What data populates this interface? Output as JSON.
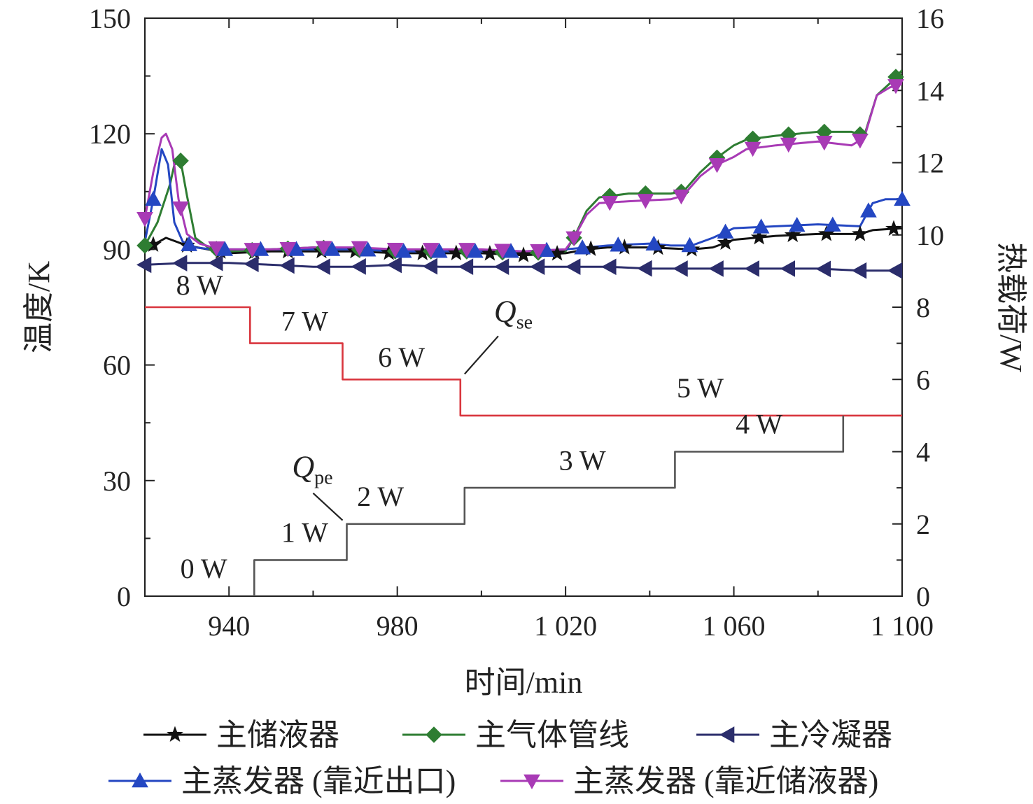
{
  "chart_data": {
    "type": "line",
    "xlabel": "时间/min",
    "ylabel": "温度/K",
    "y2label": "热载荷/W",
    "xlim": [
      920,
      1100
    ],
    "ylim": [
      0,
      150
    ],
    "y2lim": [
      0,
      16
    ],
    "x_ticks": [
      940,
      980,
      1020,
      1060,
      1100
    ],
    "x_tick_labels": [
      "940",
      "980",
      "1 020",
      "1 060",
      "1 100"
    ],
    "y_ticks": [
      0,
      30,
      60,
      90,
      120,
      150
    ],
    "y_tick_labels": [
      "0",
      "30",
      "60",
      "90",
      "120",
      "150"
    ],
    "y2_ticks": [
      0,
      2,
      4,
      6,
      8,
      10,
      12,
      14,
      16
    ],
    "y2_tick_labels": [
      "0",
      "2",
      "4",
      "6",
      "8",
      "10",
      "12",
      "14",
      "16"
    ],
    "legend_position": "bottom",
    "series": [
      {
        "name": "主储液器",
        "axis": "left",
        "color": "#111111",
        "marker": "star",
        "x": [
          920,
          925,
          930,
          935,
          940,
          950,
          960,
          970,
          980,
          990,
          1000,
          1010,
          1020,
          1025,
          1030,
          1040,
          1050,
          1055,
          1060,
          1070,
          1080,
          1090,
          1093,
          1100
        ],
        "y": [
          90,
          93,
          91,
          90,
          89,
          89.5,
          89.5,
          89.5,
          89,
          89,
          89,
          88.5,
          89,
          90,
          90.5,
          90.5,
          90,
          90.5,
          92.5,
          93.5,
          94,
          94,
          95,
          95.5
        ],
        "marker_x": [
          922,
          930,
          938,
          946,
          954,
          962,
          970,
          978,
          986,
          994,
          1002,
          1010,
          1018,
          1026,
          1034,
          1042,
          1050,
          1058,
          1066,
          1074,
          1082,
          1090,
          1098
        ]
      },
      {
        "name": "主气体管线",
        "axis": "left",
        "color": "#2e7d32",
        "marker": "diamond",
        "x": [
          920,
          923,
          926,
          927,
          928.5,
          930,
          932,
          935,
          940,
          950,
          960,
          970,
          980,
          990,
          1000,
          1010,
          1020,
          1022,
          1025,
          1028,
          1035,
          1045,
          1048,
          1052,
          1055,
          1060,
          1063,
          1070,
          1080,
          1088,
          1091,
          1094,
          1097,
          1100
        ],
        "y": [
          91,
          97,
          107,
          112,
          113,
          104,
          93,
          90.5,
          89.5,
          90,
          90.5,
          90,
          89.5,
          89.5,
          89.5,
          89,
          89.5,
          93,
          100,
          103.5,
          104.5,
          104.5,
          105,
          110,
          113,
          117,
          118.5,
          119.5,
          120.5,
          120.5,
          119.5,
          130,
          133,
          136.5
        ],
        "marker_x": [
          920,
          928.5,
          937,
          945.5,
          954,
          962.5,
          971,
          979.5,
          988,
          996.5,
          1005,
          1013.5,
          1022,
          1030.5,
          1039,
          1047.5,
          1056,
          1064.5,
          1073,
          1081.5,
          1090,
          1098.5
        ]
      },
      {
        "name": "主冷凝器",
        "axis": "left",
        "color": "#2b2d6b",
        "marker": "triangle-left",
        "x": [
          920,
          930,
          940,
          950,
          960,
          970,
          980,
          990,
          1000,
          1010,
          1020,
          1030,
          1040,
          1050,
          1060,
          1070,
          1080,
          1090,
          1100
        ],
        "y": [
          86,
          86.5,
          86.5,
          86,
          85.5,
          85.5,
          86,
          85.5,
          85.5,
          85.5,
          85.5,
          85.5,
          85,
          85,
          85,
          85,
          85,
          84.5,
          84.5
        ],
        "marker_x": [
          920,
          928.5,
          937,
          945.5,
          954,
          962.5,
          971,
          979.5,
          988,
          996.5,
          1005,
          1013.5,
          1022,
          1030.5,
          1039,
          1047.5,
          1056,
          1064.5,
          1073,
          1081.5,
          1090,
          1098.5
        ]
      },
      {
        "name": "主蒸发器 (靠近出口)",
        "axis": "left",
        "color": "#2447c2",
        "marker": "triangle-up",
        "x": [
          920,
          922,
          924,
          925.5,
          927,
          929,
          932,
          936,
          940,
          950,
          960,
          970,
          980,
          990,
          1000,
          1010,
          1020,
          1030,
          1040,
          1045,
          1050,
          1055,
          1060,
          1070,
          1080,
          1090,
          1093,
          1096,
          1100
        ],
        "y": [
          92,
          103,
          116,
          112,
          97,
          92,
          90.5,
          90,
          90,
          90,
          90,
          90,
          89.5,
          89.5,
          89.5,
          89.5,
          90,
          91,
          91.5,
          91,
          91,
          93,
          95.5,
          96,
          96.5,
          96,
          102,
          103,
          103
        ],
        "marker_x": [
          922,
          930.5,
          939,
          947.5,
          956,
          964.5,
          973,
          981.5,
          990,
          998.5,
          1007,
          1015.5,
          1024,
          1032.5,
          1041,
          1049.5,
          1058,
          1066.5,
          1075,
          1083.5,
          1092,
          1100
        ]
      },
      {
        "name": "主蒸发器 (靠近储液器)",
        "axis": "left",
        "color": "#a83ab5",
        "marker": "triangle-down",
        "x": [
          920,
          922,
          924,
          925,
          926.5,
          928,
          930,
          933,
          936,
          940,
          950,
          960,
          970,
          980,
          990,
          1000,
          1010,
          1020,
          1022,
          1025,
          1028,
          1035,
          1045,
          1048,
          1052,
          1055,
          1060,
          1063,
          1070,
          1080,
          1088,
          1091,
          1094,
          1097,
          1100
        ],
        "y": [
          98,
          110,
          119,
          120,
          116,
          103,
          94,
          91.5,
          90.5,
          90,
          90,
          90.5,
          90.5,
          90,
          90,
          90,
          89.5,
          90,
          93,
          99,
          102,
          102.5,
          103,
          104,
          109,
          111.5,
          114,
          116,
          117,
          118,
          117,
          119,
          130,
          132,
          133
        ],
        "marker_x": [
          920,
          928.5,
          937,
          945.5,
          954,
          962.5,
          971,
          979.5,
          988,
          996.5,
          1005,
          1013.5,
          1022,
          1030.5,
          1039,
          1047.5,
          1056,
          1064.5,
          1073,
          1081.5,
          1090,
          1098.5
        ]
      },
      {
        "name": "",
        "axis": "right",
        "color": "#d9363e",
        "marker": "none",
        "step": true,
        "x": [
          920,
          945,
          945,
          967,
          967,
          995,
          995,
          1100
        ],
        "y": [
          8,
          8,
          7,
          7,
          6,
          6,
          5,
          5
        ]
      },
      {
        "name": "",
        "axis": "right",
        "color": "#555555",
        "marker": "none",
        "step": true,
        "x": [
          946,
          946,
          968,
          968,
          996,
          996,
          1046,
          1046,
          1086,
          1086
        ],
        "y": [
          0,
          1,
          1,
          2,
          2,
          3,
          3,
          4,
          4,
          5
        ]
      }
    ],
    "annotations": [
      {
        "text": "8 W",
        "x": 933,
        "y2": 8.35
      },
      {
        "text": "7 W",
        "x": 958,
        "y2": 7.35
      },
      {
        "text": "6 W",
        "x": 981,
        "y2": 6.35
      },
      {
        "text": "5 W",
        "x": 1052,
        "y2": 5.5
      },
      {
        "text": "4 W",
        "x": 1066,
        "y2": 4.5
      },
      {
        "text": "3 W",
        "x": 1024,
        "y2": 3.5
      },
      {
        "text": "2 W",
        "x": 976,
        "y2": 2.5
      },
      {
        "text": "1 W",
        "x": 958,
        "y2": 1.5
      },
      {
        "text": "0 W",
        "x": 934,
        "y2": 0.5
      }
    ],
    "callouts": [
      {
        "main": "Q",
        "sub": "se",
        "x": 1003,
        "y2": 7.6,
        "line": [
          [
            996,
            6.15
          ],
          [
            1004,
            7.2
          ]
        ]
      },
      {
        "main": "Q",
        "sub": "pe",
        "x": 955,
        "y2": 3.3,
        "line": [
          [
            967,
            2.1
          ],
          [
            960,
            2.85
          ]
        ]
      }
    ]
  }
}
